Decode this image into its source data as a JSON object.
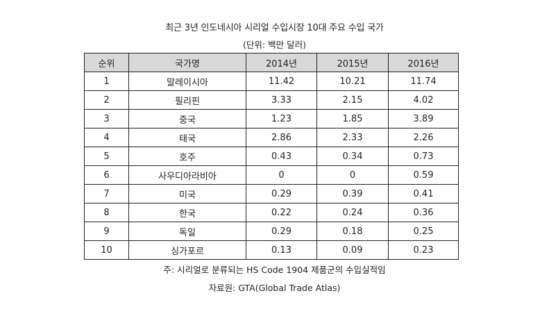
{
  "document": {
    "title": "최근 3년 인도네시아 시리얼 수입시장 10대 주요 수입 국가",
    "unit": "(단위: 백만 달러)",
    "note": "주: 시리얼로 분류되는 HS Code 1904 제품군의 수입실적임",
    "source": "자료원: GTA(Global Trade Atlas)"
  },
  "table": {
    "headers": [
      "순위",
      "국가명",
      "2014년",
      "2015년",
      "2016년"
    ],
    "rows": [
      [
        "1",
        "말레이시아",
        "11.42",
        "10.21",
        "11.74"
      ],
      [
        "2",
        "필리핀",
        "3.33",
        "2.15",
        "4.02"
      ],
      [
        "3",
        "중국",
        "1.23",
        "1.85",
        "3.89"
      ],
      [
        "4",
        "태국",
        "2.86",
        "2.33",
        "2.26"
      ],
      [
        "5",
        "호주",
        "0.43",
        "0.34",
        "0.73"
      ],
      [
        "6",
        "사우디아라비아",
        "0",
        "0",
        "0.59"
      ],
      [
        "7",
        "미국",
        "0.29",
        "0.39",
        "0.41"
      ],
      [
        "8",
        "한국",
        "0.22",
        "0.24",
        "0.36"
      ],
      [
        "9",
        "독일",
        "0.29",
        "0.18",
        "0.25"
      ],
      [
        "10",
        "싱가포르",
        "0.13",
        "0.09",
        "0.23"
      ]
    ]
  }
}
